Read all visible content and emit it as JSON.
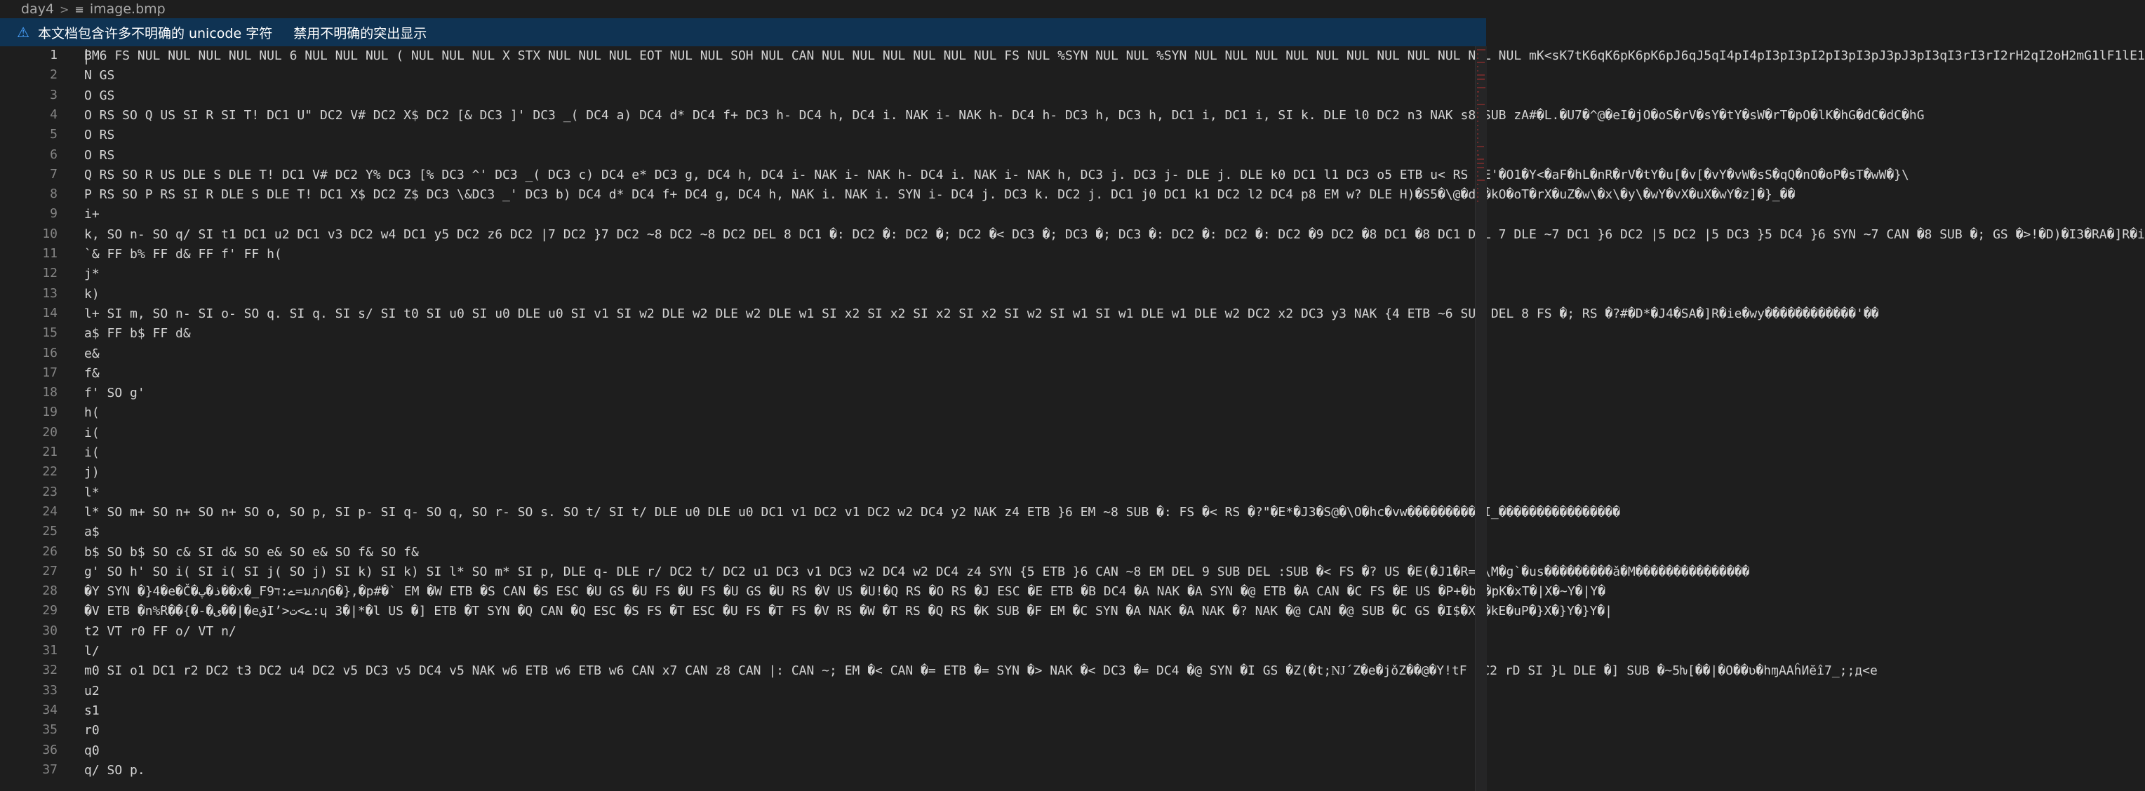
{
  "breadcrumb": {
    "folder": "day4",
    "file": "image.bmp",
    "separator": ">",
    "folder_icon": "chevron-right-icon",
    "file_icon": "file-lines-icon"
  },
  "notice": {
    "message": "本文档包含许多不明确的 unicode 字符",
    "action": "禁用不明确的突出显示",
    "icon": "warning-icon"
  },
  "colors": {
    "background": "#1e1e1e",
    "notice_bg": "#0f3353",
    "line_number": "#858585",
    "text": "#d4d4d4",
    "control_badge": "#c81e1e"
  },
  "editor": {
    "lines": [
      "BM6 FS NUL NUL NUL NUL NUL 6 NUL NUL NUL ( NUL NUL NUL X STX NUL NUL NUL EOT NUL NUL SOH NUL CAN NUL NUL NUL NUL NUL NUL FS NUL %SYN NUL NUL %SYN NUL NUL NUL NUL NUL NUL NUL NUL NUL NUL NUL mK<sK7tK6qK6pK6pK6pJ6qJ5qI4pI4pI3pI3pI2pI3pI3pJ3pJ3pI3qI3rI3rI2rH2qI2oH2mG1lF1lE1",
      "N GS",
      "O GS",
      "O RS SO Q US SI R SI T! DC1 U\" DC2 V# DC2 X$ DC2 [& DC3 ]' DC3 _( DC4 a) DC4 d* DC4 f+ DC3 h- DC4 h, DC4 i. NAK i- NAK h- DC4 h- DC3 h, DC3 h, DC1 i, DC1 i, SI k. DLE l0 DC2 n3 NAK s8 SUB zA#�L.�U7�^@�eI�jO�oS�rV�sY�tY�sW�rT�pO�lK�hG�dC�dC�hG",
      "O RS",
      "O RS",
      "Q RS SO R US DLE S DLE T! DC1 V# DC2 Y% DC3 [% DC3 ^' DC3 _( DC3 c) DC4 e* DC3 g, DC4 h, DC4 i- NAK i- NAK h- DC4 i. NAK i- NAK h, DC3 j. DC3 j- DLE j. DLE k0 DC1 l1 DC3 o5 ETB u< RS ~E'�O1�Y<�aF�hL�nR�rV�tY�u[�v[�vY�vW�sS�qQ�nO�oP�sT�wW�}\\",
      "P RS SO P RS SI R DLE S DLE T! DC1 X$ DC2 Z$ DC3 \\&DC3 _' DC3 b) DC4 d* DC4 f+ DC4 g, DC4 h, NAK i. NAK i. SYN i- DC4 j. DC3 k. DC2 j. DC1 j0 DC1 k1 DC2 l2 DC4 p8 EM w? DLE H)�S5�\\@�dH�kO�oT�rX�uZ�w\\�x\\�y\\�wY�vX�uX�wY�z]�}_��",
      "i+",
      "k, SO n- SO q/ SI t1 DC1 u2 DC1 v3 DC2 w4 DC1 y5 DC2 z6 DC2 |7 DC2 }7 DC2 ~8 DC2 ~8 DC2 DEL 8 DC1 �: DC2 �: DC2 �; DC2 �< DC3 �; DC3 �; DC3 �: DC2 �: DC2 �: DC2 �9 DC2 �8 DC1 �8 DC1 DEL 7 DLE ~7 DC1 }6 DC2 |5 DC2 |5 DC3 }5 DC4 }6 SYN ~7 CAN �8 SUB �; GS �>!�D)�I3�RA�]R�i",
      "`& FF b% FF d& FF f' FF h(",
      "j*",
      "k)",
      "l+ SI m, SO n- SI o- SO q. SI q. SI s/ SI t0 SI u0 SI u0 DLE u0 SI v1 SI w2 DLE w2 DLE w2 DLE w1 SI x2 SI x2 SI x2 SI x2 SI w2 SI w1 SI w1 DLE w1 DLE w2 DC2 x2 DC3 y3 NAK {4 ETB ~6 SUB DEL 8 FS �; RS �?#�D*�J4�SA�]R�ie�wy������������'��",
      "a$ FF b$ FF d&",
      "e&",
      "f&",
      "f' SO g'",
      "h(",
      "i(",
      "i(",
      "j)",
      "l*",
      "l* SO m+ SO n+ SO n+ SO o, SO p, SI p- SI q- SO q, SO r- SO s. SO t/ SI t/ DLE u0 DLE u0 DC1 v1 DC2 v1 DC2 w2 DC4 y2 NAK z4 ETB }6 EM ~8 SUB �: FS �< RS �?\"�E*�J3�S@�\\O�hc�vw����������I̲����������������",
      "a$",
      "b$ SO b$ SO c& SI d& SO e& SO e& SO f& SO f&",
      "g' SO h' SO i( SI i( SI j( SO j) SI k) SI k) SI l* SO m* SI p, DLE q- DLE r/ DC2 t/ DC2 u1 DC3 v1 DC3 w2 DC4 w2 DC4 z4 SYN {5 ETB }6 CAN ~8 EM DEL 9 SUB DEL :SUB �< FS �? US �E(�J1�R=�\\M�g`�us���������ǎ�M���������������",
      "�Y SYN �}4�e�Č�ذ�پ��x�_F9ے:ד=มภฦ6�},�p#�` EM �W ETB �S CAN �S ESC �U GS �U FS �U FS �U GS �U RS �V US �U!�Q RS �O RS �J ESC �E ETB �B DC4 �A NAK �A SYN �@ ETB �A CAN �C FS �E US �P+�b<�pK�xT�|X�~Y�|Y�",
      "�V ETB �n%̆R��{�-�ی��|�eقI’>ے>ت:ɥ 3�|*�l US �] ETB �T SYN �Q CAN �Q ESC �S FS �T ESC �U FS �T FS �V RS �W �T RS �Q RS �K SUB �F EM �C SYN �A NAK �A NAK �? NAK �@ CAN �@ SUB �C GS �I$�X3�kE�uP�}X�}Y�}Y�|",
      "t2 VT r0 FF o/ VT n/",
      "l/",
      "m0 SI o1 DC1 r2 DC2 t3 DC2 u4 DC2 v5 DC3 v5 DC4 v5 NAK w6 ETB w6 ETB w6 CAN x7 CAN z8 CAN |: CAN ~; EM �< CAN �= ETB �= SYN �> NAK �< DC3 �= DC4 �@ SYN �I GS �Z(�t;Ǌ´Z�e�jǒZ��@�Y!tF DC2 rD SI }L DLE �] SUB �~5ƕ[��|�O��ʋ�hɱAAĥИӗı̂7_;;д<е",
      "u2",
      "s1",
      "r0",
      "q0",
      "q/ SO p."
    ]
  }
}
